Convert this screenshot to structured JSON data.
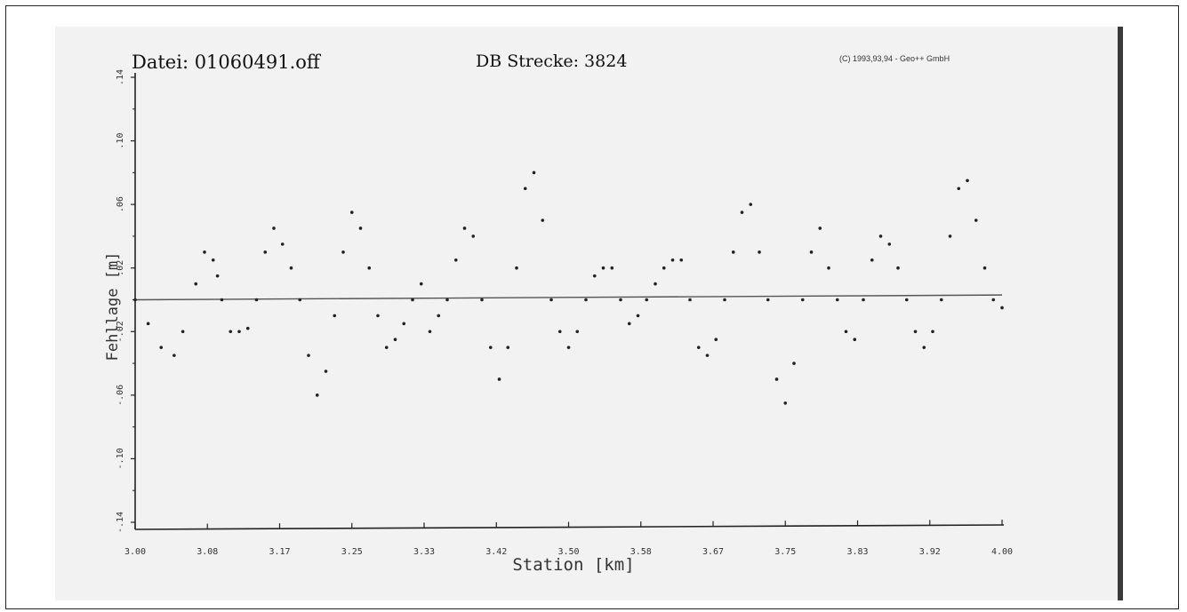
{
  "header": {
    "file": "Datei: 01060491.off",
    "track": "DB Strecke: 3824",
    "copyright": "(C) 1993,93,94 - Geo++ GmbH"
  },
  "colors": {
    "ink": "#222222",
    "paper": "#f2f2f2"
  },
  "chart_data": {
    "type": "scatter",
    "title": "",
    "xlabel": "Station [km]",
    "ylabel": "Fehllage [m]",
    "xlim": [
      3.0,
      4.0
    ],
    "ylim": [
      -0.14,
      0.14
    ],
    "grid": false,
    "xticks": [
      "3.00",
      "3.08",
      "3.17",
      "3.25",
      "3.33",
      "3.42",
      "3.50",
      "3.58",
      "3.67",
      "3.75",
      "3.83",
      "3.92",
      "4.00"
    ],
    "yticks": [
      ".14",
      ".10",
      ".06",
      ".02",
      "-.02",
      "-.06",
      "-.10",
      "-.14"
    ],
    "reference_line": {
      "x": [
        3.0,
        4.0
      ],
      "y": [
        0.0,
        0.003
      ]
    },
    "series": [
      {
        "x": [
          3.0,
          3.015,
          3.03,
          3.045,
          3.055,
          3.07,
          3.08,
          3.09,
          3.095,
          3.1,
          3.11,
          3.12,
          3.13,
          3.14,
          3.15,
          3.16,
          3.17,
          3.18,
          3.19,
          3.2,
          3.21,
          3.22,
          3.23,
          3.24,
          3.25,
          3.26,
          3.27,
          3.28,
          3.29,
          3.3,
          3.31,
          3.32,
          3.33,
          3.34,
          3.35,
          3.36,
          3.37,
          3.38,
          3.39,
          3.4,
          3.41,
          3.42,
          3.43,
          3.44,
          3.45,
          3.46,
          3.47,
          3.48,
          3.49,
          3.5,
          3.51,
          3.52,
          3.53,
          3.54,
          3.55,
          3.56,
          3.57,
          3.58,
          3.59,
          3.6,
          3.61,
          3.62,
          3.63,
          3.64,
          3.65,
          3.66,
          3.67,
          3.68,
          3.69,
          3.7,
          3.71,
          3.72,
          3.73,
          3.74,
          3.75,
          3.76,
          3.77,
          3.78,
          3.79,
          3.8,
          3.81,
          3.82,
          3.83,
          3.84,
          3.85,
          3.86,
          3.87,
          3.88,
          3.89,
          3.9,
          3.91,
          3.92,
          3.93,
          3.94,
          3.95,
          3.96,
          3.97,
          3.98,
          3.99,
          4.0
        ],
        "y": [
          0.0,
          -0.015,
          -0.03,
          -0.035,
          -0.02,
          0.01,
          0.03,
          0.025,
          0.015,
          0.0,
          -0.02,
          -0.02,
          -0.018,
          0.0,
          0.03,
          0.045,
          0.035,
          0.02,
          0.0,
          -0.035,
          -0.06,
          -0.045,
          -0.01,
          0.03,
          0.055,
          0.045,
          0.02,
          -0.01,
          -0.03,
          -0.025,
          -0.015,
          0.0,
          0.01,
          -0.02,
          -0.01,
          0.0,
          0.025,
          0.045,
          0.04,
          0.0,
          -0.03,
          -0.05,
          -0.03,
          0.02,
          0.07,
          0.08,
          0.05,
          0.0,
          -0.02,
          -0.03,
          -0.02,
          0.0,
          0.015,
          0.02,
          0.02,
          0.0,
          -0.015,
          -0.01,
          0.0,
          0.01,
          0.02,
          0.025,
          0.025,
          0.0,
          -0.03,
          -0.035,
          -0.025,
          0.0,
          0.03,
          0.055,
          0.06,
          0.03,
          0.0,
          -0.05,
          -0.065,
          -0.04,
          0.0,
          0.03,
          0.045,
          0.02,
          0.0,
          -0.02,
          -0.025,
          0.0,
          0.025,
          0.04,
          0.035,
          0.02,
          0.0,
          -0.02,
          -0.03,
          -0.02,
          0.0,
          0.04,
          0.07,
          0.075,
          0.05,
          0.02,
          0.0,
          -0.005
        ]
      }
    ]
  }
}
